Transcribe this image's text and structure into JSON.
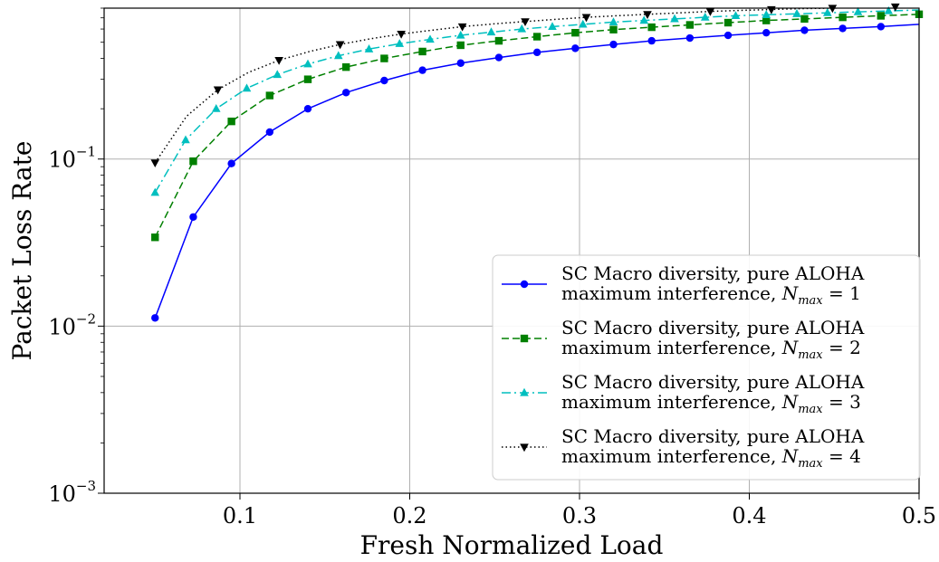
{
  "chart_data": {
    "type": "line",
    "title": "",
    "xlabel": "Fresh Normalized Load",
    "ylabel": "Packet Loss Rate",
    "xlim": [
      0.02,
      0.5
    ],
    "ylim": [
      0.001,
      0.8
    ],
    "yscale": "log",
    "grid": true,
    "legend_position": "bottom-right",
    "x_ticks": [
      {
        "value": 0.1,
        "label": "0.1"
      },
      {
        "value": 0.2,
        "label": "0.2"
      },
      {
        "value": 0.3,
        "label": "0.3"
      },
      {
        "value": 0.4,
        "label": "0.4"
      },
      {
        "value": 0.5,
        "label": "0.5"
      }
    ],
    "y_ticks": [
      {
        "value": 0.001,
        "base": "10",
        "exp": "−3"
      },
      {
        "value": 0.01,
        "base": "10",
        "exp": "−2"
      },
      {
        "value": 0.1,
        "base": "10",
        "exp": "−1"
      }
    ],
    "series": [
      {
        "legend_line1": "SC Macro diversity, pure ALOHA",
        "legend_line2_prefix": "maximum interference,",
        "legend_var": "N",
        "legend_sub": "max",
        "legend_eq": "= 1",
        "color": "#0000ff",
        "dash": "solid",
        "marker": "circle",
        "x": [
          0.05,
          0.0725,
          0.095,
          0.1175,
          0.14,
          0.1625,
          0.185,
          0.2075,
          0.23,
          0.2525,
          0.275,
          0.2975,
          0.32,
          0.3425,
          0.365,
          0.3875,
          0.41,
          0.4325,
          0.455,
          0.4775,
          0.5
        ],
        "y": [
          0.0112,
          0.045,
          0.094,
          0.145,
          0.2,
          0.25,
          0.295,
          0.34,
          0.375,
          0.405,
          0.435,
          0.46,
          0.485,
          0.51,
          0.53,
          0.55,
          0.57,
          0.59,
          0.605,
          0.62,
          0.64
        ],
        "marker_x": [
          0.05,
          0.0725,
          0.095,
          0.1175,
          0.14,
          0.1625,
          0.185,
          0.2075,
          0.23,
          0.2525,
          0.275,
          0.2975,
          0.32,
          0.3425,
          0.365,
          0.3875,
          0.41,
          0.4325,
          0.455,
          0.4775
        ]
      },
      {
        "legend_line1": "SC Macro diversity, pure ALOHA",
        "legend_line2_prefix": "maximum interference,",
        "legend_var": "N",
        "legend_sub": "max",
        "legend_eq": "= 2",
        "color": "#008000",
        "dash": "8,4",
        "marker": "square",
        "x": [
          0.05,
          0.0725,
          0.095,
          0.1175,
          0.14,
          0.1625,
          0.185,
          0.2075,
          0.23,
          0.2525,
          0.275,
          0.2975,
          0.32,
          0.3425,
          0.365,
          0.3875,
          0.41,
          0.4325,
          0.455,
          0.4775,
          0.5
        ],
        "y": [
          0.034,
          0.097,
          0.168,
          0.24,
          0.3,
          0.355,
          0.4,
          0.44,
          0.48,
          0.51,
          0.54,
          0.57,
          0.595,
          0.615,
          0.635,
          0.655,
          0.675,
          0.69,
          0.705,
          0.72,
          0.735
        ],
        "marker_x": [
          0.05,
          0.0725,
          0.095,
          0.1175,
          0.14,
          0.1625,
          0.185,
          0.2075,
          0.23,
          0.2525,
          0.275,
          0.2975,
          0.32,
          0.3425,
          0.365,
          0.3875,
          0.41,
          0.4325,
          0.455,
          0.4775,
          0.5
        ]
      },
      {
        "legend_line1": "SC Macro diversity, pure ALOHA",
        "legend_line2_prefix": "maximum interference,",
        "legend_var": "N",
        "legend_sub": "max",
        "legend_eq": "= 3",
        "color": "#00bfbf",
        "dash": "10,4,2,4",
        "marker": "triangle-up",
        "x": [
          0.05,
          0.068,
          0.086,
          0.104,
          0.122,
          0.14,
          0.158,
          0.176,
          0.194,
          0.212,
          0.23,
          0.248,
          0.266,
          0.284,
          0.302,
          0.32,
          0.338,
          0.356,
          0.374,
          0.392,
          0.41,
          0.428,
          0.446,
          0.464,
          0.482,
          0.5
        ],
        "y": [
          0.063,
          0.13,
          0.2,
          0.265,
          0.32,
          0.37,
          0.415,
          0.455,
          0.49,
          0.52,
          0.55,
          0.575,
          0.6,
          0.62,
          0.64,
          0.66,
          0.675,
          0.69,
          0.705,
          0.72,
          0.73,
          0.74,
          0.75,
          0.76,
          0.77,
          0.78
        ],
        "marker_x": [
          0.05,
          0.068,
          0.086,
          0.104,
          0.122,
          0.14,
          0.158,
          0.176,
          0.194,
          0.212,
          0.23,
          0.248,
          0.266,
          0.284,
          0.302,
          0.32,
          0.338,
          0.356,
          0.374,
          0.392,
          0.41,
          0.428,
          0.446,
          0.464,
          0.482
        ]
      },
      {
        "legend_line1": "SC Macro diversity, pure ALOHA",
        "legend_line2_prefix": "maximum interference,",
        "legend_var": "N",
        "legend_sub": "max",
        "legend_eq": "= 4",
        "color": "#000000",
        "dash": "1.5,3",
        "marker": "triangle-down",
        "x": [
          0.05,
          0.0685,
          0.087,
          0.105,
          0.123,
          0.141,
          0.159,
          0.177,
          0.195,
          0.213,
          0.231,
          0.25,
          0.268,
          0.286,
          0.304,
          0.322,
          0.34,
          0.359,
          0.377,
          0.395,
          0.413,
          0.431,
          0.449,
          0.468,
          0.486,
          0.5
        ],
        "y": [
          0.095,
          0.18,
          0.26,
          0.33,
          0.39,
          0.44,
          0.485,
          0.525,
          0.56,
          0.59,
          0.62,
          0.645,
          0.665,
          0.685,
          0.705,
          0.72,
          0.735,
          0.75,
          0.765,
          0.775,
          0.785,
          0.795,
          0.8,
          0.81,
          0.815,
          0.82
        ],
        "marker_x": [
          0.05,
          0.087,
          0.123,
          0.159,
          0.195,
          0.231,
          0.268,
          0.304,
          0.34,
          0.377,
          0.413,
          0.449,
          0.486
        ]
      }
    ]
  }
}
